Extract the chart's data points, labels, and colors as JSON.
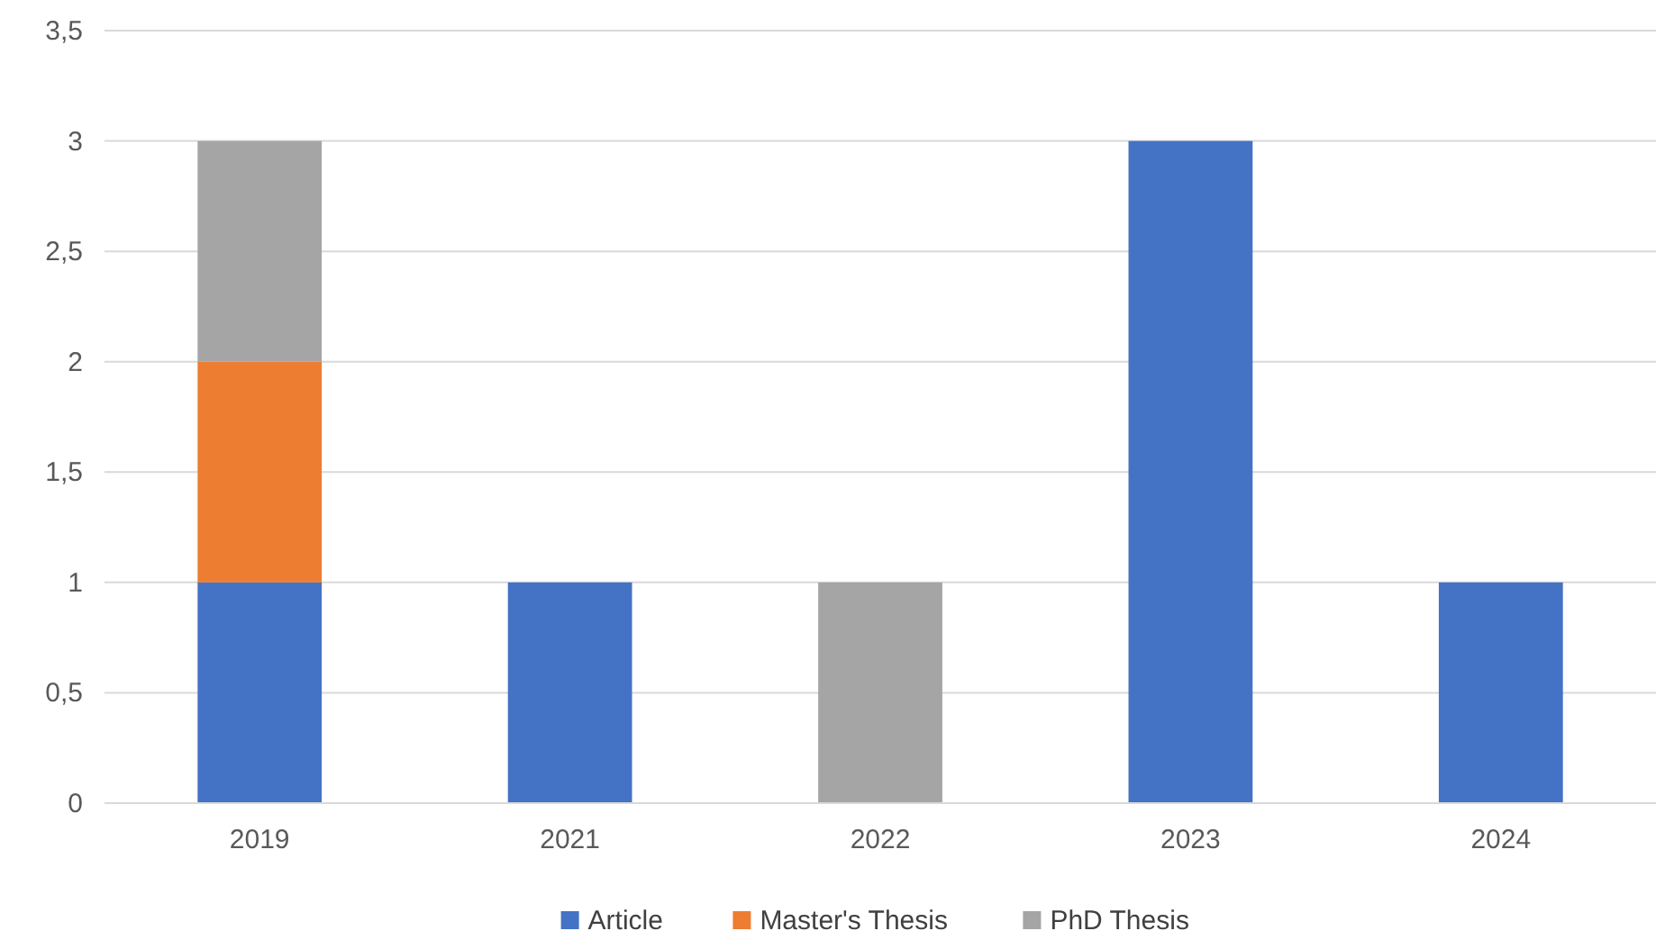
{
  "chart_data": {
    "type": "bar",
    "stacked": true,
    "categories": [
      "2019",
      "2021",
      "2022",
      "2023",
      "2024"
    ],
    "series": [
      {
        "name": "Article",
        "color": "#4472c4",
        "values": [
          1,
          1,
          0,
          3,
          1
        ]
      },
      {
        "name": "Master's Thesis",
        "color": "#ed7d31",
        "values": [
          1,
          0,
          0,
          0,
          0
        ]
      },
      {
        "name": "PhD Thesis",
        "color": "#a5a5a5",
        "values": [
          1,
          0,
          1,
          0,
          0
        ]
      }
    ],
    "ylim": [
      0,
      3.5
    ],
    "yticks": [
      0,
      {
        "value": 0.5,
        "label": "0,5"
      },
      1,
      {
        "value": 1.5,
        "label": "1,5"
      },
      2,
      {
        "value": 2.5,
        "label": "2,5"
      },
      3,
      {
        "value": 3.5,
        "label": "3,5"
      }
    ],
    "grid": "y",
    "legend": "bottom"
  }
}
